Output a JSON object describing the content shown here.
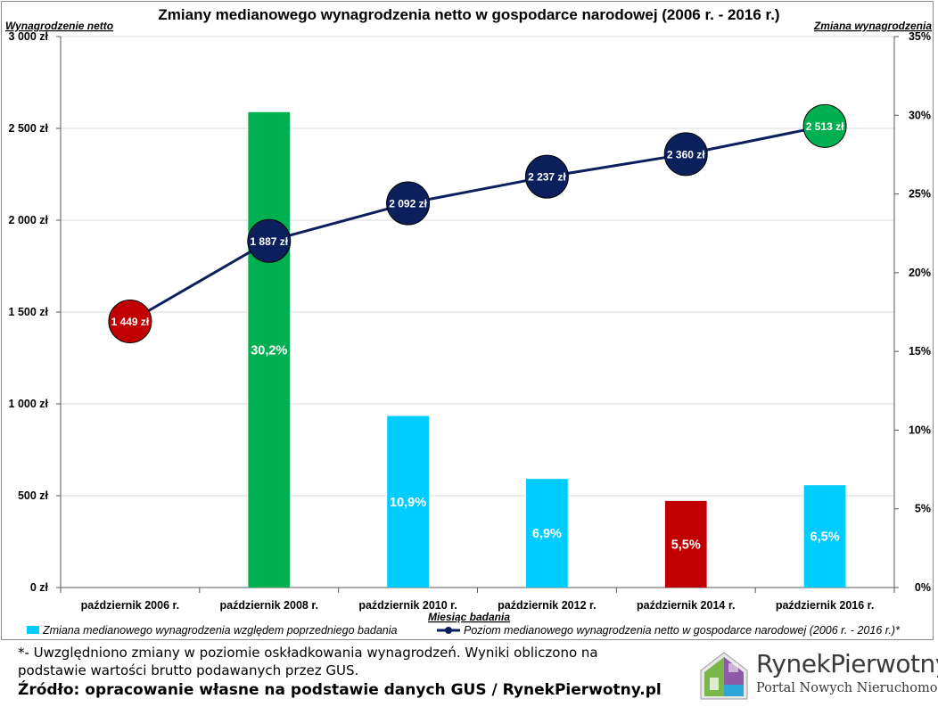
{
  "chart_data": {
    "type": "bar+line",
    "title": "Zmiany medianowego wynagrodzenia netto w gospodarce narodowej (2006 r. - 2016 r.)",
    "ylabel_left": "Wynagrodzenie netto",
    "ylabel_right": "Zmiana wynagrodzenia",
    "xlabel": "Miesiąc badania",
    "ylim_left": [
      0,
      3000
    ],
    "ylim_right": [
      0,
      35
    ],
    "left_ticks": [
      "0 zł",
      "500 zł",
      "1 000 zł",
      "1 500 zł",
      "2 000 zł",
      "2 500 zł",
      "3 000 zł"
    ],
    "right_ticks": [
      "0%",
      "5%",
      "10%",
      "15%",
      "20%",
      "25%",
      "30%",
      "35%"
    ],
    "grid": true,
    "categories": [
      "październik 2006 r.",
      "październik 2008 r.",
      "październik 2010 r.",
      "październik 2012 r.",
      "październik 2014 r.",
      "październik 2016 r."
    ],
    "series": [
      {
        "name": "Zmiana medianowego wynagrodzenia względem poprzedniego badania",
        "kind": "bar",
        "axis": "right",
        "values": [
          null,
          30.2,
          10.9,
          6.9,
          5.5,
          6.5
        ],
        "labels": [
          "",
          "30,2%",
          "10,9%",
          "6,9%",
          "5,5%",
          "6,5%"
        ],
        "colors": [
          "#00b050",
          "#00b050",
          "#00ccff",
          "#00ccff",
          "#c00000",
          "#00ccff"
        ]
      },
      {
        "name": "Poziom medianowego wynagrodzenia netto w gospodarce narodowej (2006 r. - 2016 r.)*",
        "kind": "line",
        "axis": "left",
        "values": [
          1449,
          1887,
          2092,
          2237,
          2360,
          2513
        ],
        "labels": [
          "1 449 zł",
          "1 887 zł",
          "2 092 zł",
          "2 237 zł",
          "2 360 zł",
          "2 513 zł"
        ],
        "marker_colors": [
          "#c00000",
          "#0a1f5c",
          "#0a1f5c",
          "#0a1f5c",
          "#0a1f5c",
          "#00b050"
        ]
      }
    ],
    "legend_position": "bottom",
    "legend_swatch_colors": {
      "bar": "#00ccff",
      "line": "#0a1f5c"
    }
  },
  "footer": {
    "note": "*- Uwzględniono zmiany w poziomie oskładkowania wynagrodzeń. Wyniki obliczono na podstawie wartości brutto podawanych przez GUS.",
    "source": "Źródło: opracowanie własne na podstawie danych GUS / RynekPierwotny.pl"
  },
  "logo": {
    "name": "RynekPierwotny",
    "tagline": "Portal Nowych Nieruchomości"
  }
}
